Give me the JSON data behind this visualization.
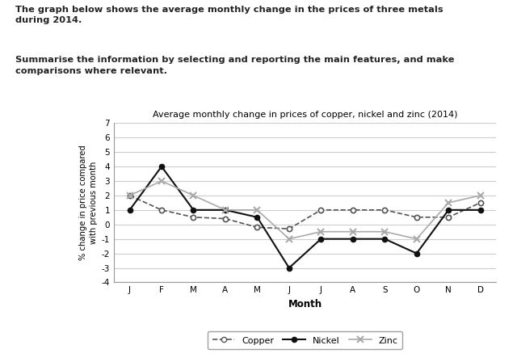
{
  "title": "Average monthly change in prices of copper, nickel and zinc (2014)",
  "xlabel": "Month",
  "ylabel": "% change in price compared\nwith previous month",
  "months": [
    "J",
    "F",
    "M",
    "A",
    "M",
    "J",
    "J",
    "A",
    "S",
    "O",
    "N",
    "D"
  ],
  "copper": [
    2,
    1,
    0.5,
    0.4,
    -0.2,
    -0.3,
    1.0,
    1.0,
    1.0,
    0.5,
    0.5,
    1.5
  ],
  "nickel": [
    1,
    4,
    1,
    1,
    0.5,
    -3.0,
    -1,
    -1,
    -1,
    -2,
    1,
    1
  ],
  "zinc": [
    2,
    3,
    2,
    1,
    1,
    -1,
    -0.5,
    -0.5,
    -0.5,
    -1,
    1.5,
    2
  ],
  "copper_color": "#555555",
  "nickel_color": "#111111",
  "zinc_color": "#aaaaaa",
  "ylim": [
    -4,
    7
  ],
  "yticks": [
    -4,
    -3,
    -2,
    -1,
    0,
    1,
    2,
    3,
    4,
    5,
    6,
    7
  ],
  "text_block1": "The graph below shows the average monthly change in the prices of three metals\nduring 2014.",
  "text_block2": "Summarise the information by selecting and reporting the main features, and make\ncomparisons where relevant.",
  "bg_color": "#ffffff",
  "grid_color": "#cccccc",
  "text_color": "#222222"
}
